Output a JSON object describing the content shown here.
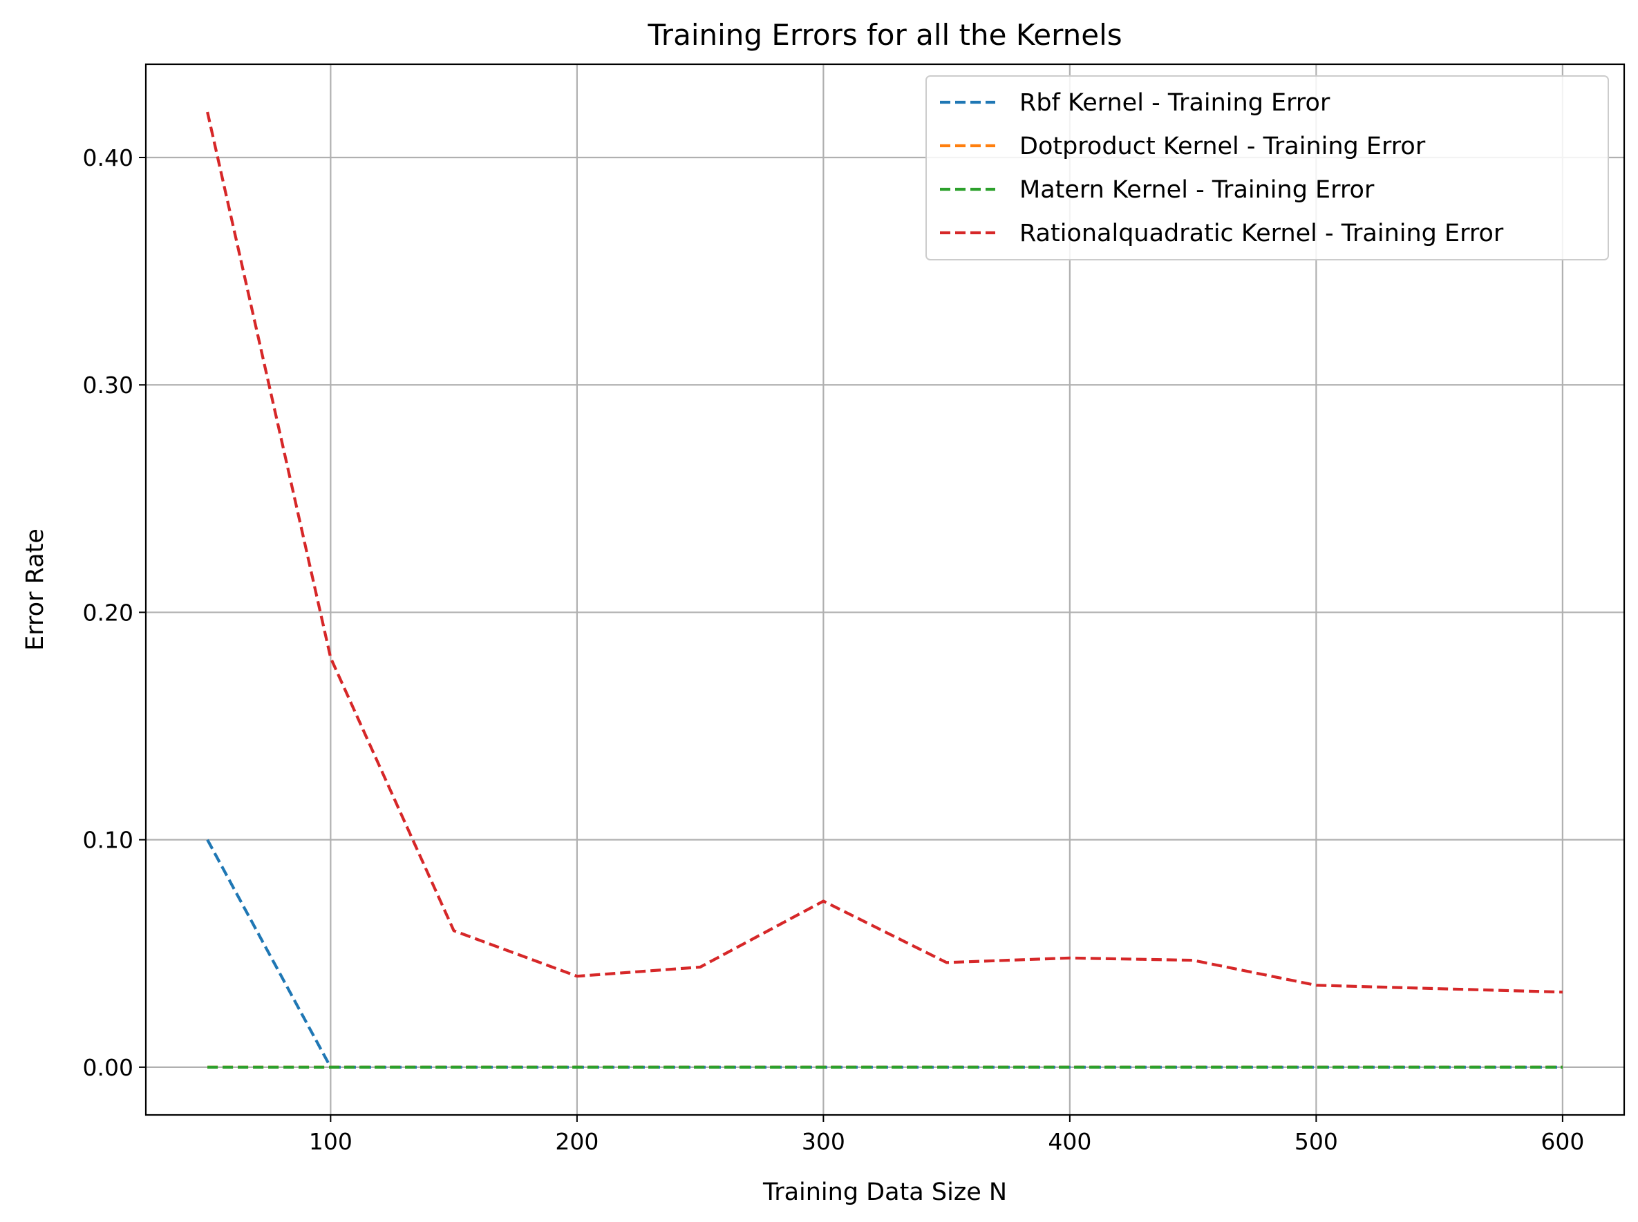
{
  "chart_data": {
    "type": "line",
    "title": "Training Errors for all the Kernels",
    "xlabel": "Training Data Size N",
    "ylabel": "Error Rate",
    "xlim": [
      25,
      625
    ],
    "ylim": [
      -0.021,
      0.441
    ],
    "x_ticks": [
      100,
      200,
      300,
      400,
      500,
      600
    ],
    "x_tick_labels": [
      "100",
      "200",
      "300",
      "400",
      "500",
      "600"
    ],
    "y_ticks": [
      0.0,
      0.1,
      0.2,
      0.3,
      0.4
    ],
    "y_tick_labels": [
      "0.00",
      "0.10",
      "0.20",
      "0.30",
      "0.40"
    ],
    "grid": true,
    "legend_position": "top-right",
    "line_style": "dashed",
    "x": [
      50,
      100,
      150,
      200,
      250,
      300,
      350,
      400,
      450,
      500,
      600
    ],
    "series": [
      {
        "name": "Rbf Kernel - Training Error",
        "color": "#1f77b4",
        "values": [
          0.1,
          0.0,
          0.0,
          0.0,
          0.0,
          0.0,
          0.0,
          0.0,
          0.0,
          0.0,
          0.0
        ]
      },
      {
        "name": "Dotproduct Kernel - Training Error",
        "color": "#ff7f0e",
        "values": [
          0.0,
          0.0,
          0.0,
          0.0,
          0.0,
          0.0,
          0.0,
          0.0,
          0.0,
          0.0,
          0.0
        ]
      },
      {
        "name": "Matern Kernel - Training Error",
        "color": "#2ca02c",
        "values": [
          0.0,
          0.0,
          0.0,
          0.0,
          0.0,
          0.0,
          0.0,
          0.0,
          0.0,
          0.0,
          0.0
        ]
      },
      {
        "name": "Rationalquadratic Kernel - Training Error",
        "color": "#d62728",
        "values": [
          0.42,
          0.18,
          0.06,
          0.04,
          0.044,
          0.073,
          0.046,
          0.048,
          0.047,
          0.036,
          0.033
        ]
      }
    ]
  }
}
